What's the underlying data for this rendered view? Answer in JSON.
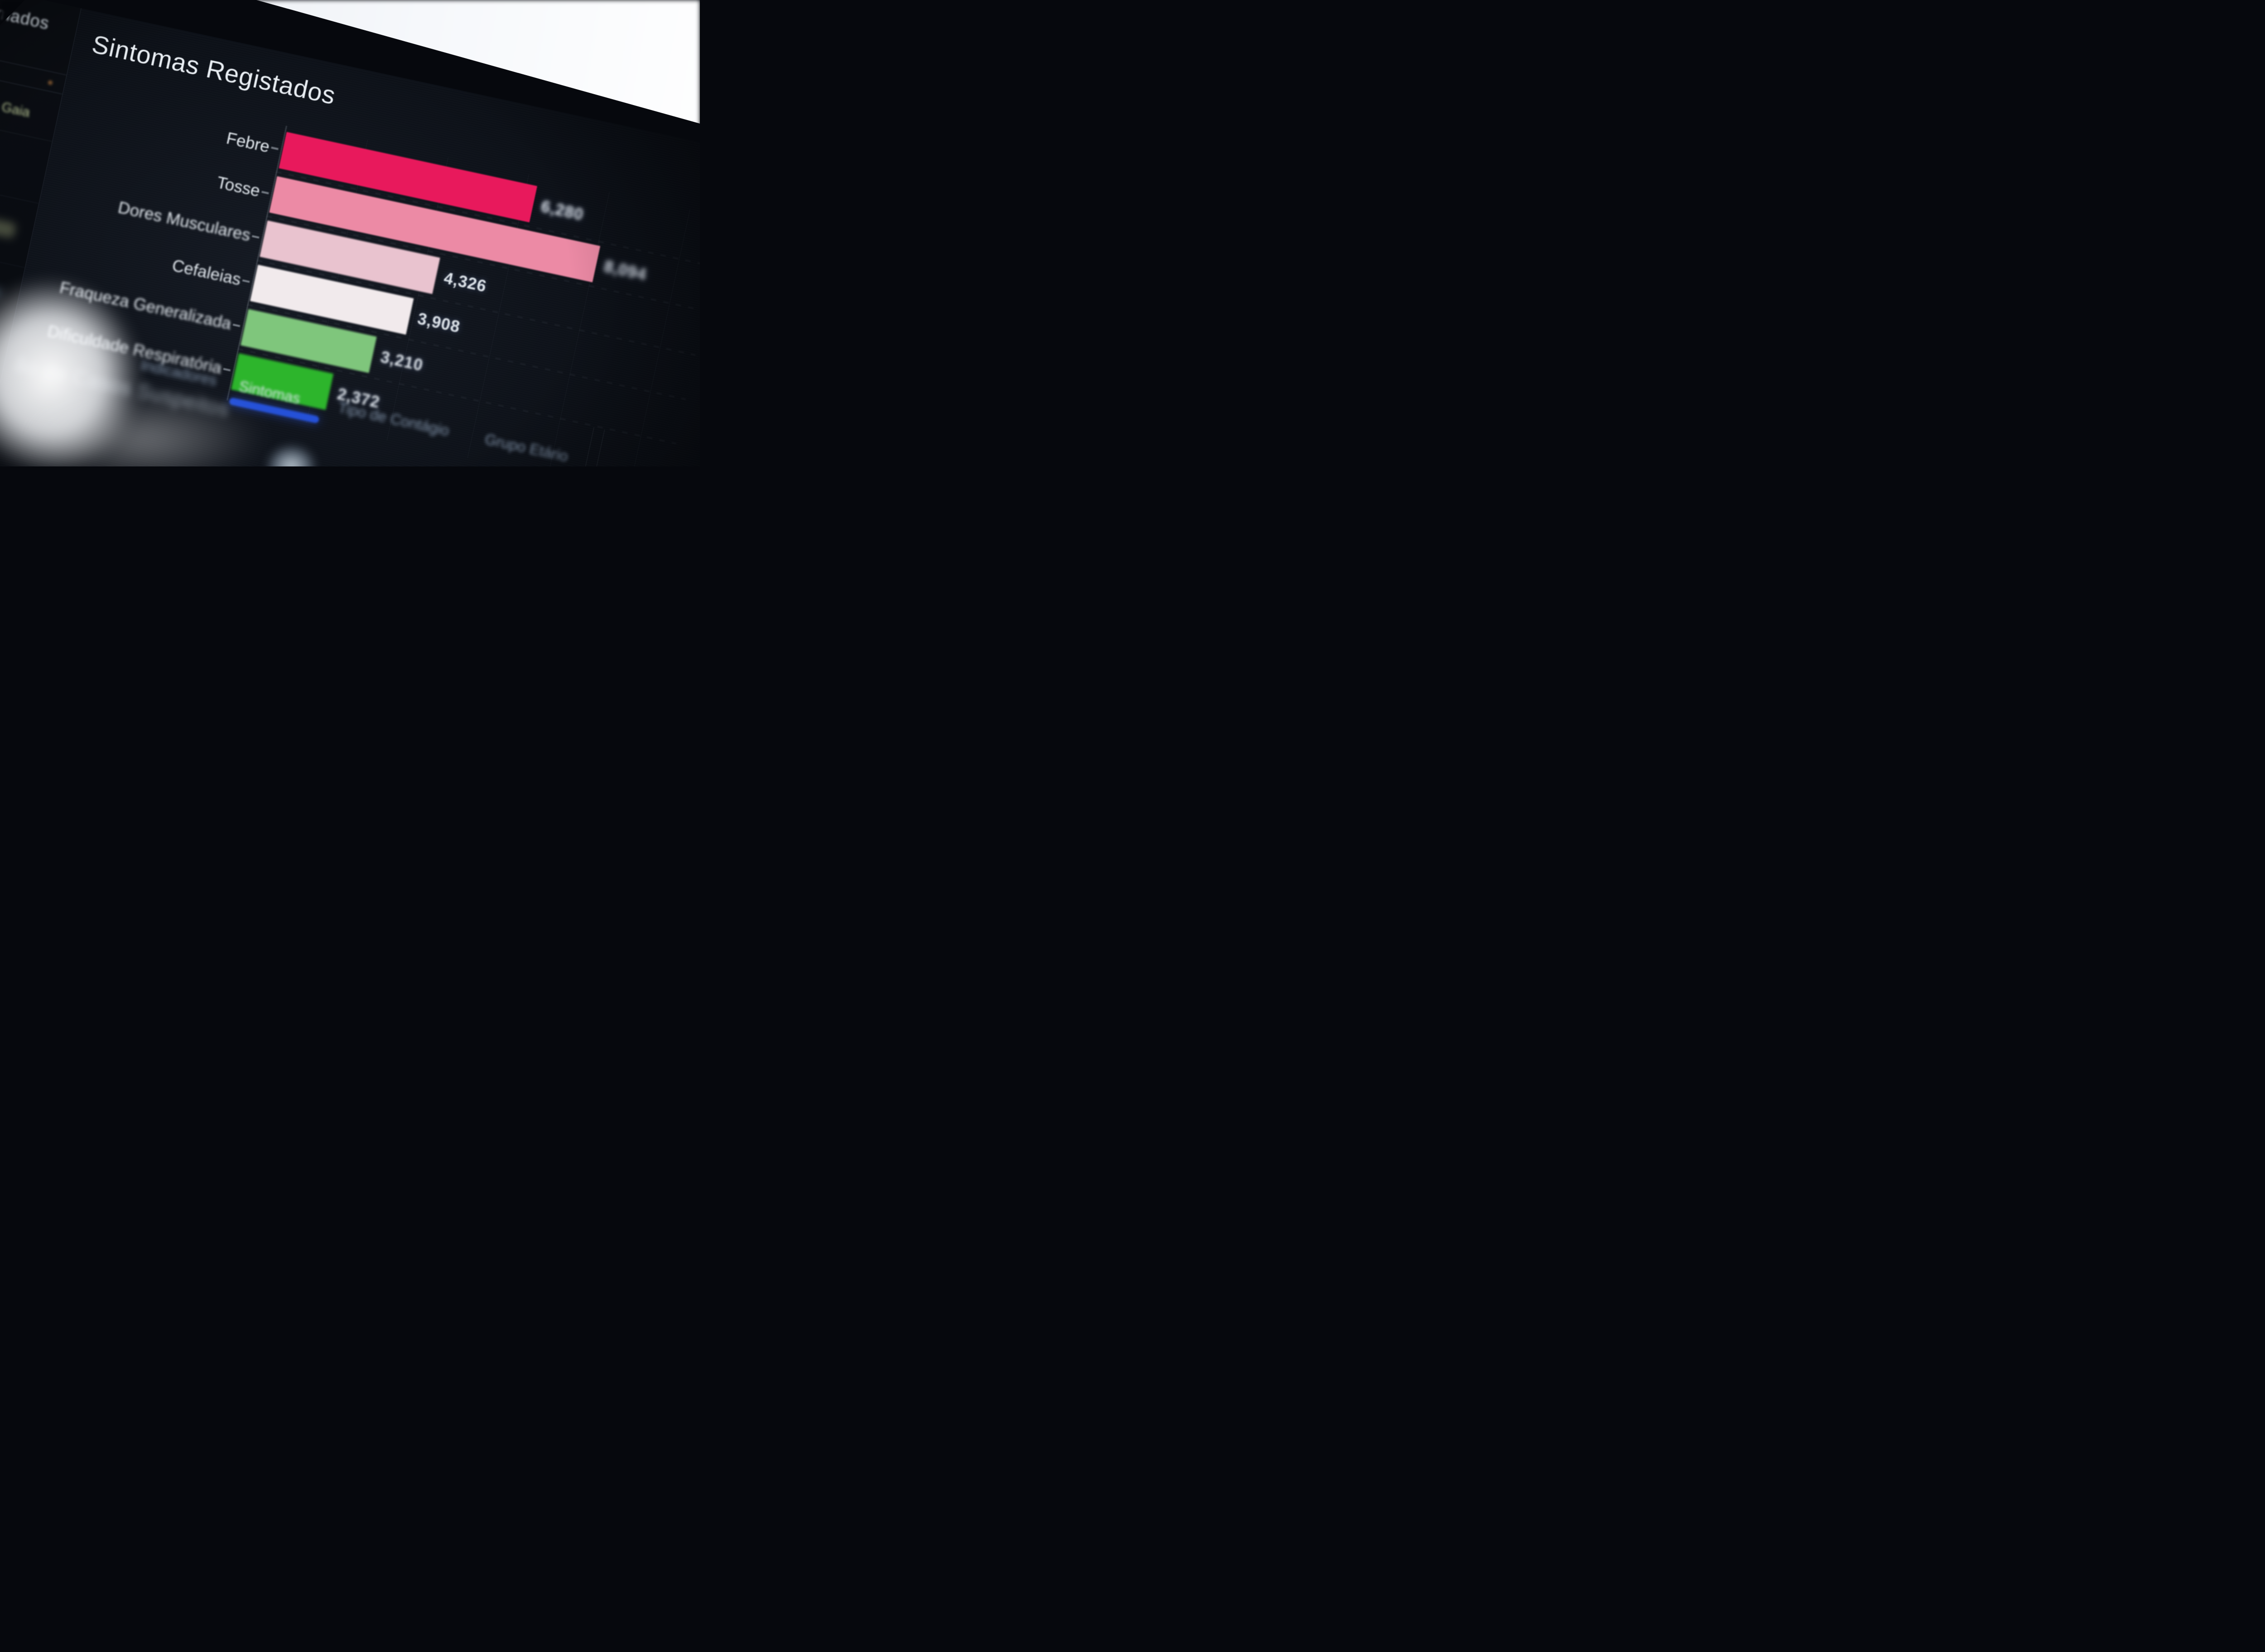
{
  "sidebar": {
    "title": "Confirmados",
    "highlight_row": "Vila Nova de Gaia"
  },
  "chart_panel": {
    "title": "Sintomas Registados"
  },
  "chart_data": {
    "type": "bar",
    "orientation": "horizontal",
    "title": "Sintomas Registados",
    "categories": [
      "Febre",
      "Tosse",
      "Dores Musculares",
      "Cefaleias",
      "Fraqueza Generalizada",
      "Dificuldade Respiratória"
    ],
    "values": [
      6280,
      8094,
      4326,
      3908,
      3210,
      2372
    ],
    "value_labels": [
      "6,280",
      "8,094",
      "4,326",
      "3,908",
      "3,210",
      "2,372"
    ],
    "bar_colors": [
      "#e8195c",
      "#ec8aa5",
      "#e9c3cf",
      "#f1eaec",
      "#7fc67c",
      "#2db52c"
    ],
    "xlim": [
      0,
      8500
    ],
    "xlabel": "",
    "ylabel": "",
    "grid": "faint dashed row separators and vertical gridlines",
    "value_label_position": "end-of-bar",
    "legend": "none"
  },
  "tabs": [
    {
      "label": "Indicadores",
      "active": false
    },
    {
      "label": "Sintomas",
      "active": true
    },
    {
      "label": "Tipo de Contágio",
      "active": false
    },
    {
      "label": "Grupo Etário",
      "active": false
    }
  ],
  "bottom_panel": {
    "title_fragment": "ão de Casos Suspeitos"
  },
  "colors": {
    "active_tab_underline": "#2551d8",
    "screen_background": "#0b0f15",
    "highlight_row_color": "#c9d7a1",
    "bar_value_text": "#dde3e9"
  }
}
